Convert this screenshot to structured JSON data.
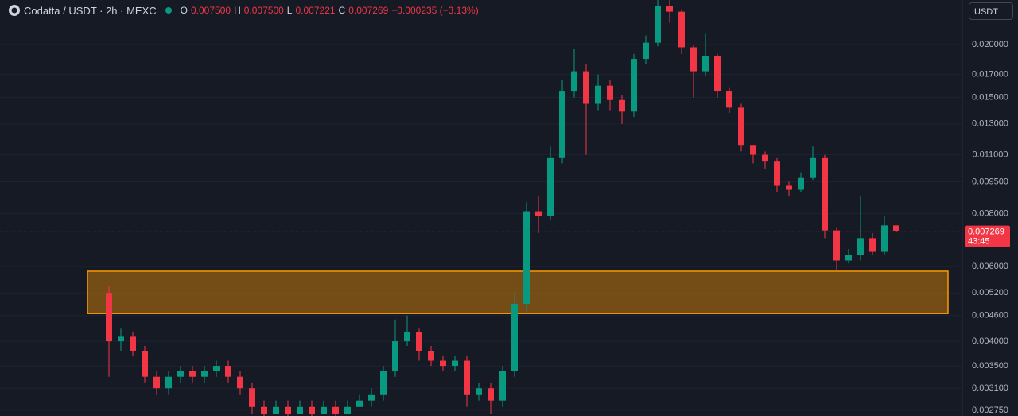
{
  "header": {
    "symbol": "Codatta / USDT · 2h · MEXC",
    "o_label": "O",
    "o": "0.007500",
    "h_label": "H",
    "h": "0.007500",
    "l_label": "L",
    "l": "0.007221",
    "c_label": "C",
    "c": "0.007269",
    "change": "−0.000235 (−3.13%)",
    "currency": "USDT",
    "countdown": "43:45"
  },
  "chart_data": {
    "type": "candlestick",
    "log_scale": true,
    "grid": true,
    "up_color": "#089981",
    "down_color": "#f23645",
    "ylim": [
      0.002668,
      0.02546
    ],
    "yticks": [
      {
        "value": 0.02,
        "label": "0.020000"
      },
      {
        "value": 0.017,
        "label": "0.017000"
      },
      {
        "value": 0.015,
        "label": "0.015000"
      },
      {
        "value": 0.013,
        "label": "0.013000"
      },
      {
        "value": 0.011,
        "label": "0.011000"
      },
      {
        "value": 0.0095,
        "label": "0.009500"
      },
      {
        "value": 0.008,
        "label": "0.008000"
      },
      {
        "value": 0.006,
        "label": "0.006000"
      },
      {
        "value": 0.0052,
        "label": "0.005200"
      },
      {
        "value": 0.0046,
        "label": "0.004600"
      },
      {
        "value": 0.004,
        "label": "0.004000"
      },
      {
        "value": 0.0035,
        "label": "0.003500"
      },
      {
        "value": 0.0031,
        "label": "0.003100"
      },
      {
        "value": 0.00275,
        "label": "0.002750"
      }
    ],
    "last_price": {
      "value": 0.007269,
      "label": "0.007269"
    },
    "zone": [
      0.00465,
      0.00585
    ],
    "zone_color": "#ff9800",
    "open": [
      0.0052,
      0.004,
      0.0041,
      0.0038,
      0.0033,
      0.0031,
      0.0033,
      0.0034,
      0.0033,
      0.0034,
      0.0035,
      0.0033,
      0.0031,
      0.0028,
      0.0027,
      0.0028,
      0.0027,
      0.0028,
      0.0027,
      0.0028,
      0.0027,
      0.0028,
      0.0029,
      0.003,
      0.0034,
      0.004,
      0.0042,
      0.0038,
      0.0036,
      0.0035,
      0.0036,
      0.003,
      0.0031,
      0.0029,
      0.0034,
      0.0049,
      0.0081,
      0.0079,
      0.0108,
      0.0155,
      0.0173,
      0.0145,
      0.016,
      0.0148,
      0.0139,
      0.0185,
      0.0202,
      0.0246,
      0.0239,
      0.0197,
      0.0173,
      0.0188,
      0.0155,
      0.0142,
      0.0116,
      0.011,
      0.0106,
      0.0093,
      0.0091,
      0.0097,
      0.0108,
      0.0073,
      0.0062,
      0.0064,
      0.007,
      0.0065,
      0.0075
    ],
    "high": [
      0.0054,
      0.0043,
      0.0042,
      0.0039,
      0.0034,
      0.0034,
      0.0035,
      0.0035,
      0.0035,
      0.0036,
      0.0036,
      0.0034,
      0.0032,
      0.0029,
      0.0029,
      0.0029,
      0.0029,
      0.0029,
      0.0029,
      0.0029,
      0.0029,
      0.003,
      0.0031,
      0.0035,
      0.0045,
      0.0046,
      0.0043,
      0.0039,
      0.0037,
      0.0037,
      0.0037,
      0.0032,
      0.0032,
      0.0035,
      0.0052,
      0.0085,
      0.0088,
      0.0115,
      0.0165,
      0.0195,
      0.018,
      0.017,
      0.0165,
      0.0152,
      0.019,
      0.021,
      0.0255,
      0.0255,
      0.0242,
      0.02,
      0.0212,
      0.019,
      0.0158,
      0.0145,
      0.0116,
      0.0112,
      0.0108,
      0.0095,
      0.01,
      0.0115,
      0.011,
      0.0074,
      0.0066,
      0.0088,
      0.0072,
      0.0079,
      0.0075
    ],
    "low": [
      0.0033,
      0.0038,
      0.0037,
      0.0032,
      0.003,
      0.003,
      0.0032,
      0.0032,
      0.0032,
      0.0033,
      0.0032,
      0.003,
      0.0027,
      0.0026,
      0.0027,
      0.0026,
      0.0027,
      0.0026,
      0.0027,
      0.0026,
      0.0027,
      0.0028,
      0.0028,
      0.0029,
      0.0033,
      0.0039,
      0.0036,
      0.0035,
      0.0034,
      0.0034,
      0.0028,
      0.0029,
      0.0027,
      0.0028,
      0.0033,
      0.0047,
      0.0072,
      0.0077,
      0.0105,
      0.015,
      0.011,
      0.014,
      0.014,
      0.013,
      0.0135,
      0.018,
      0.0198,
      0.0225,
      0.019,
      0.015,
      0.0168,
      0.015,
      0.0138,
      0.0112,
      0.0105,
      0.0102,
      0.009,
      0.0088,
      0.009,
      0.0096,
      0.007,
      0.0059,
      0.0061,
      0.0062,
      0.0064,
      0.0064,
      0.007221
    ],
    "close": [
      0.004,
      0.0041,
      0.0038,
      0.0033,
      0.0031,
      0.0033,
      0.0034,
      0.0033,
      0.0034,
      0.0035,
      0.0033,
      0.0031,
      0.0028,
      0.0027,
      0.0028,
      0.0027,
      0.0028,
      0.0027,
      0.0028,
      0.0027,
      0.0028,
      0.0029,
      0.003,
      0.0034,
      0.004,
      0.0042,
      0.0038,
      0.0036,
      0.0035,
      0.0036,
      0.003,
      0.0031,
      0.0029,
      0.0034,
      0.0049,
      0.0081,
      0.0079,
      0.0108,
      0.0155,
      0.0173,
      0.0145,
      0.016,
      0.0148,
      0.0139,
      0.0185,
      0.0202,
      0.0246,
      0.0239,
      0.0197,
      0.0173,
      0.0188,
      0.0155,
      0.0142,
      0.0116,
      0.011,
      0.0106,
      0.0093,
      0.0091,
      0.0097,
      0.0108,
      0.0073,
      0.0062,
      0.0064,
      0.007,
      0.0065,
      0.0075,
      0.007269
    ]
  }
}
